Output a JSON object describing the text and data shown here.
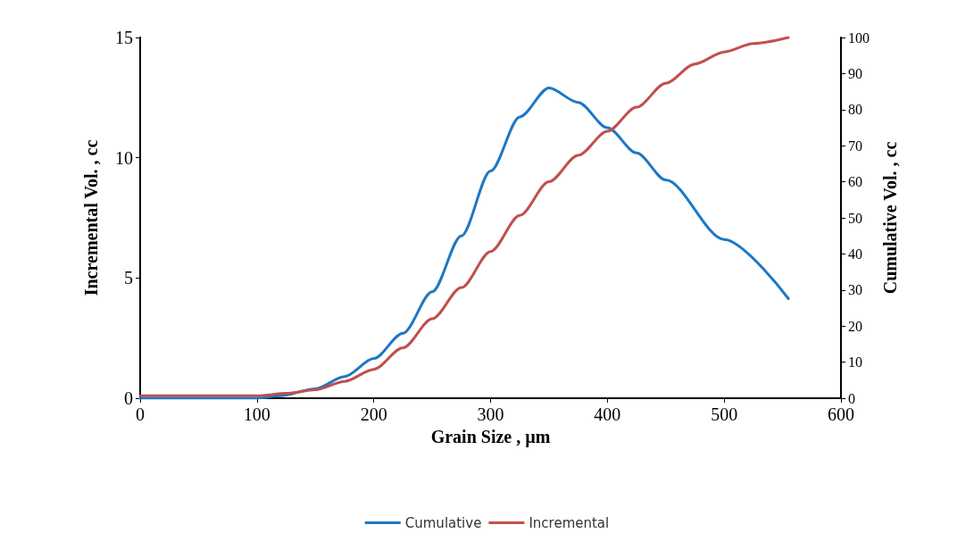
{
  "chart_data": {
    "type": "line",
    "xlabel": "Grain Size , µm",
    "ylabel": "Incremental Vol. , cc",
    "y2label": "Cumulative Vol. , cc",
    "xlim": [
      0,
      600
    ],
    "xticks": [
      0,
      100,
      200,
      300,
      400,
      500,
      600
    ],
    "ylim": [
      0,
      15
    ],
    "yticks": [
      0,
      5,
      10,
      15
    ],
    "y2lim": [
      0,
      100
    ],
    "y2ticks": [
      0,
      10,
      20,
      30,
      40,
      50,
      60,
      70,
      80,
      90,
      100
    ],
    "grid": false,
    "legend": "bottom",
    "marker": "none",
    "line_style": "solid",
    "series": [
      {
        "name": "Cumulative",
        "color": "#1f77c4",
        "axis": "y2",
        "x": [
          0,
          100,
          120,
          150,
          175,
          200,
          225,
          250,
          275,
          300,
          325,
          350,
          375,
          400,
          425,
          450,
          500,
          555
        ],
        "values": [
          0,
          0,
          0.7,
          2.6,
          6,
          11,
          18,
          29.5,
          45,
          63,
          78,
          86,
          82,
          75,
          68,
          60.5,
          44,
          27.6
        ]
      },
      {
        "name": "Incremental",
        "color": "#c0504d",
        "axis": "y",
        "x": [
          0,
          100,
          125,
          150,
          175,
          200,
          225,
          250,
          275,
          300,
          325,
          350,
          375,
          400,
          425,
          450,
          475,
          500,
          525,
          555
        ],
        "values": [
          0.1,
          0.1,
          0.2,
          0.35,
          0.7,
          1.2,
          2.1,
          3.3,
          4.6,
          6.1,
          7.6,
          9.0,
          10.1,
          11.1,
          12.1,
          13.1,
          13.9,
          14.4,
          14.75,
          15
        ]
      }
    ]
  }
}
